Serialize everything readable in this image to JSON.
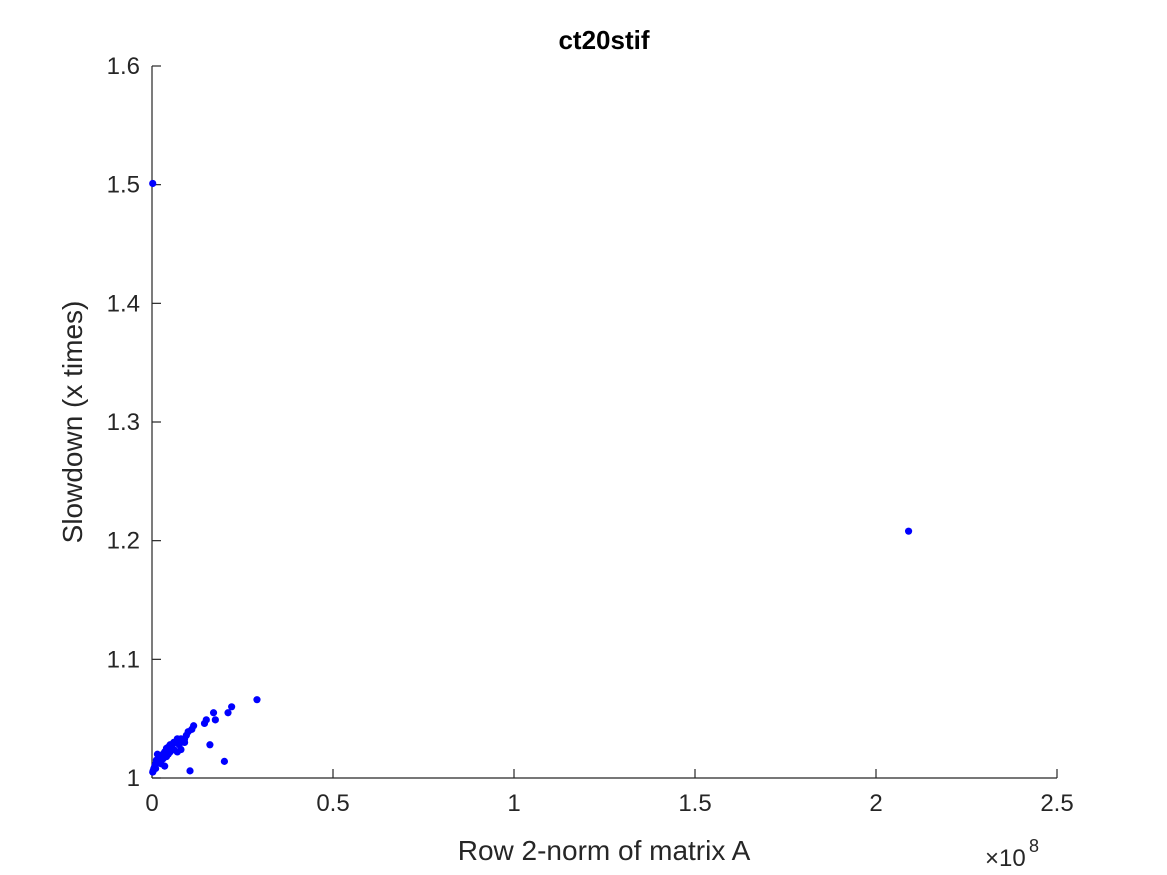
{
  "chart_data": {
    "type": "scatter",
    "title": "ct20stif",
    "xlabel": "Row 2-norm of matrix A",
    "ylabel": "Slowdown (x times)",
    "x_exponent_label": "×10",
    "x_exponent_power": "8",
    "x_scale": 100000000,
    "xlim": [
      0,
      2.5
    ],
    "ylim": [
      1,
      1.6
    ],
    "x_ticks": [
      0,
      0.5,
      1,
      1.5,
      2,
      2.5
    ],
    "x_tick_labels": [
      "0",
      "0.5",
      "1",
      "1.5",
      "2",
      "2.5"
    ],
    "y_ticks": [
      1,
      1.1,
      1.2,
      1.3,
      1.4,
      1.5,
      1.6
    ],
    "y_tick_labels": [
      "1",
      "1.1",
      "1.2",
      "1.3",
      "1.4",
      "1.5",
      "1.6"
    ],
    "grid": false,
    "marker_color": "#0000ff",
    "points": [
      [
        0.002,
        1.501
      ],
      [
        2.09,
        1.208
      ],
      [
        0.29,
        1.066
      ],
      [
        0.22,
        1.06
      ],
      [
        0.21,
        1.055
      ],
      [
        0.17,
        1.055
      ],
      [
        0.175,
        1.049
      ],
      [
        0.15,
        1.049
      ],
      [
        0.145,
        1.046
      ],
      [
        0.115,
        1.044
      ],
      [
        0.11,
        1.041
      ],
      [
        0.1,
        1.039
      ],
      [
        0.095,
        1.036
      ],
      [
        0.09,
        1.033
      ],
      [
        0.08,
        1.033
      ],
      [
        0.07,
        1.033
      ],
      [
        0.065,
        1.03
      ],
      [
        0.06,
        1.03
      ],
      [
        0.055,
        1.028
      ],
      [
        0.05,
        1.028
      ],
      [
        0.045,
        1.026
      ],
      [
        0.04,
        1.025
      ],
      [
        0.035,
        1.022
      ],
      [
        0.03,
        1.02
      ],
      [
        0.025,
        1.018
      ],
      [
        0.02,
        1.016
      ],
      [
        0.015,
        1.014
      ],
      [
        0.01,
        1.012
      ],
      [
        0.008,
        1.01
      ],
      [
        0.005,
        1.008
      ],
      [
        0.003,
        1.006
      ],
      [
        0.002,
        1.005
      ],
      [
        0.012,
        1.015
      ],
      [
        0.025,
        1.012
      ],
      [
        0.035,
        1.01
      ],
      [
        0.04,
        1.018
      ],
      [
        0.05,
        1.022
      ],
      [
        0.06,
        1.024
      ],
      [
        0.07,
        1.022
      ],
      [
        0.08,
        1.024
      ],
      [
        0.09,
        1.03
      ],
      [
        0.16,
        1.028
      ],
      [
        0.2,
        1.014
      ],
      [
        0.105,
        1.006
      ],
      [
        0.015,
        1.02
      ],
      [
        0.03,
        1.016
      ],
      [
        0.045,
        1.02
      ],
      [
        0.055,
        1.025
      ],
      [
        0.075,
        1.028
      ],
      [
        0.01,
        1.008
      ]
    ]
  }
}
